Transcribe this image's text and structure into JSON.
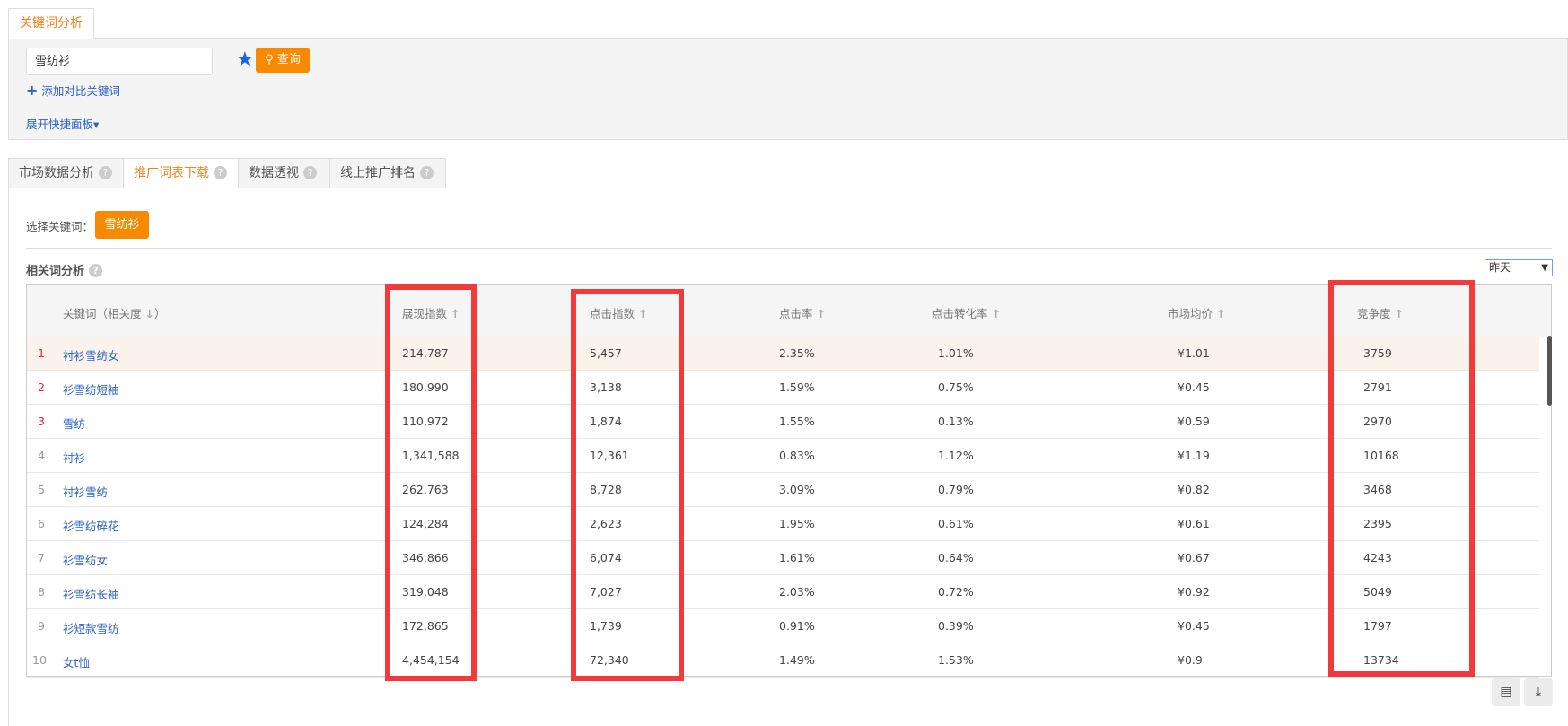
{
  "top_tab": "关键词分析",
  "search": {
    "value": "雪纺衫",
    "button": "查询",
    "add_compare": "添加对比关键词",
    "expand_panel": "展开快捷面板"
  },
  "tabs": [
    {
      "label": "市场数据分析"
    },
    {
      "label": "推广词表下载",
      "active": true
    },
    {
      "label": "数据透视"
    },
    {
      "label": "线上推广排名"
    }
  ],
  "select_keyword": {
    "label": "选择关键词：",
    "value": "雪纺衫"
  },
  "section_title": "相关词分析",
  "period_select": "昨天",
  "table": {
    "headers": [
      "关键词（相关度",
      "展现指数",
      "点击指数",
      "点击率",
      "点击转化率",
      "市场均价",
      "竞争度"
    ],
    "rows": [
      [
        "1",
        "衬衫雪纺女",
        "214,787",
        "5,457",
        "2.35%",
        "1.01%",
        "¥1.01",
        "3759"
      ],
      [
        "2",
        "衫雪纺短袖",
        "180,990",
        "3,138",
        "1.59%",
        "0.75%",
        "¥0.45",
        "2791"
      ],
      [
        "3",
        "雪纺",
        "110,972",
        "1,874",
        "1.55%",
        "0.13%",
        "¥0.59",
        "2970"
      ],
      [
        "4",
        "衬衫",
        "1,341,588",
        "12,361",
        "0.83%",
        "1.12%",
        "¥1.19",
        "10168"
      ],
      [
        "5",
        "衬衫雪纺",
        "262,763",
        "8,728",
        "3.09%",
        "0.79%",
        "¥0.82",
        "3468"
      ],
      [
        "6",
        "衫雪纺碎花",
        "124,284",
        "2,623",
        "1.95%",
        "0.61%",
        "¥0.61",
        "2395"
      ],
      [
        "7",
        "衫雪纺女",
        "346,866",
        "6,074",
        "1.61%",
        "0.64%",
        "¥0.67",
        "4243"
      ],
      [
        "8",
        "衫雪纺长袖",
        "319,048",
        "7,027",
        "2.03%",
        "0.72%",
        "¥0.92",
        "5049"
      ],
      [
        "9",
        "衫短款雪纺",
        "172,865",
        "1,739",
        "0.91%",
        "0.39%",
        "¥0.45",
        "1797"
      ],
      [
        "10",
        "女t恤",
        "4,454,154",
        "72,340",
        "1.49%",
        "1.53%",
        "¥0.9",
        "13734"
      ]
    ]
  },
  "colors": {
    "accent": "#f78a00",
    "link": "#2a62c9",
    "highlight": "#f23a3a"
  }
}
